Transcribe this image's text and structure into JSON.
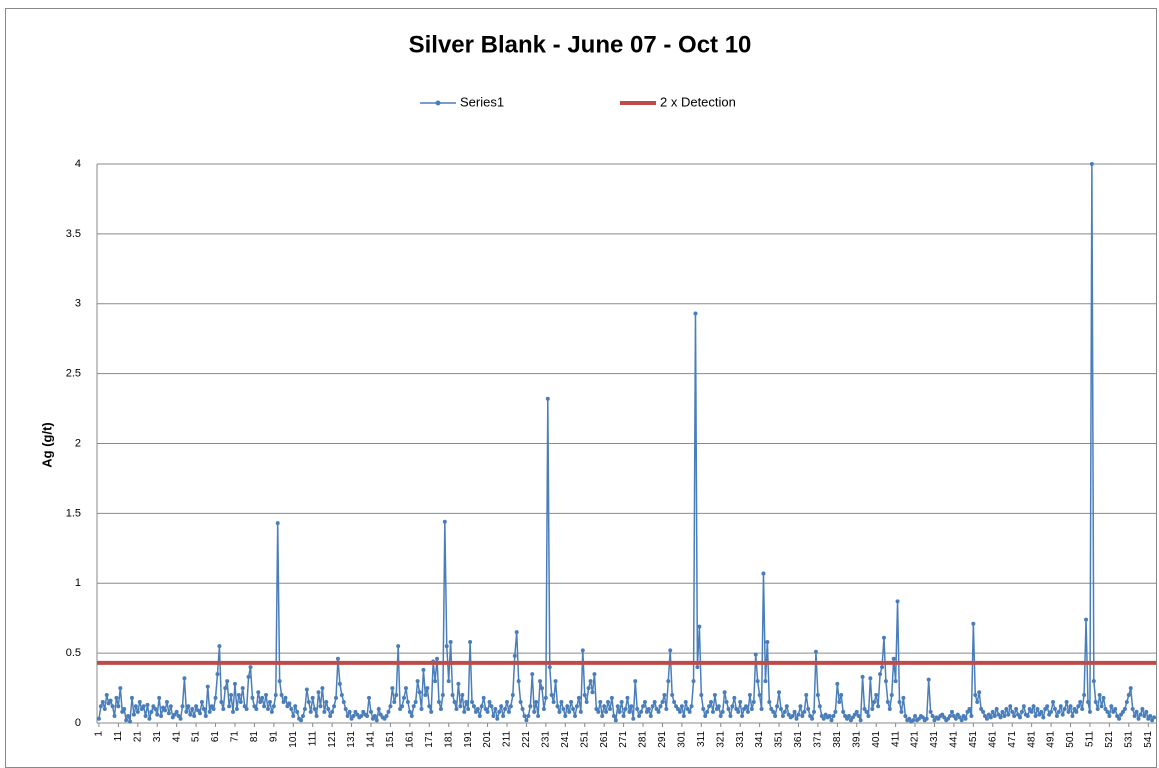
{
  "chart_data": {
    "type": "line",
    "title": "Silver Blank - June 07 - Oct 10",
    "ylabel": "Ag (g/t)",
    "x": [
      1,
      2,
      3,
      4,
      5,
      6,
      7,
      8,
      9,
      10,
      11,
      12,
      13,
      14,
      15,
      16,
      17,
      18,
      19,
      20,
      21,
      22,
      23,
      24,
      25,
      26,
      27,
      28,
      29,
      30,
      31,
      32,
      33,
      34,
      35,
      36,
      37,
      38,
      39,
      40,
      41,
      42,
      43,
      44,
      45,
      46,
      47,
      48,
      49,
      50,
      51,
      52,
      53,
      54,
      55,
      56,
      57,
      58,
      59,
      60,
      61,
      62,
      63,
      64,
      65,
      66,
      67,
      68,
      69,
      70,
      71,
      72,
      73,
      74,
      75,
      76,
      77,
      78,
      79,
      80,
      81,
      82,
      83,
      84,
      85,
      86,
      87,
      88,
      89,
      90,
      91,
      92,
      93,
      94,
      95,
      96,
      97,
      98,
      99,
      100,
      101,
      102,
      103,
      104,
      105,
      106,
      107,
      108,
      109,
      110,
      111,
      112,
      113,
      114,
      115,
      116,
      117,
      118,
      119,
      120,
      121,
      122,
      123,
      124,
      125,
      126,
      127,
      128,
      129,
      130,
      131,
      132,
      133,
      134,
      135,
      136,
      137,
      138,
      139,
      140,
      141,
      142,
      143,
      144,
      145,
      146,
      147,
      148,
      149,
      150,
      151,
      152,
      153,
      154,
      155,
      156,
      157,
      158,
      159,
      160,
      161,
      162,
      163,
      164,
      165,
      166,
      167,
      168,
      169,
      170,
      171,
      172,
      173,
      174,
      175,
      176,
      177,
      178,
      179,
      180,
      181,
      182,
      183,
      184,
      185,
      186,
      187,
      188,
      189,
      190,
      191,
      192,
      193,
      194,
      195,
      196,
      197,
      198,
      199,
      200,
      201,
      202,
      203,
      204,
      205,
      206,
      207,
      208,
      209,
      210,
      211,
      212,
      213,
      214,
      215,
      216,
      217,
      218,
      219,
      220,
      221,
      222,
      223,
      224,
      225,
      226,
      227,
      228,
      229,
      230,
      231,
      232,
      233,
      234,
      235,
      236,
      237,
      238,
      239,
      240,
      241,
      242,
      243,
      244,
      245,
      246,
      247,
      248,
      249,
      250,
      251,
      252,
      253,
      254,
      255,
      256,
      257,
      258,
      259,
      260,
      261,
      262,
      263,
      264,
      265,
      266,
      267,
      268,
      269,
      270,
      271,
      272,
      273,
      274,
      275,
      276,
      277,
      278,
      279,
      280,
      281,
      282,
      283,
      284,
      285,
      286,
      287,
      288,
      289,
      290,
      291,
      292,
      293,
      294,
      295,
      296,
      297,
      298,
      299,
      300,
      301,
      302,
      303,
      304,
      305,
      306,
      307,
      308,
      309,
      310,
      311,
      312,
      313,
      314,
      315,
      316,
      317,
      318,
      319,
      320,
      321,
      322,
      323,
      324,
      325,
      326,
      327,
      328,
      329,
      330,
      331,
      332,
      333,
      334,
      335,
      336,
      337,
      338,
      339,
      340,
      341,
      342,
      343,
      344,
      345,
      346,
      347,
      348,
      349,
      350,
      351,
      352,
      353,
      354,
      355,
      356,
      357,
      358,
      359,
      360,
      361,
      362,
      363,
      364,
      365,
      366,
      367,
      368,
      369,
      370,
      371,
      372,
      373,
      374,
      375,
      376,
      377,
      378,
      379,
      380,
      381,
      382,
      383,
      384,
      385,
      386,
      387,
      388,
      389,
      390,
      391,
      392,
      393,
      394,
      395,
      396,
      397,
      398,
      399,
      400,
      401,
      402,
      403,
      404,
      405,
      406,
      407,
      408,
      409,
      410,
      411,
      412,
      413,
      414,
      415,
      416,
      417,
      418,
      419,
      420,
      421,
      422,
      423,
      424,
      425,
      426,
      427,
      428,
      429,
      430,
      431,
      432,
      433,
      434,
      435,
      436,
      437,
      438,
      439,
      440,
      441,
      442,
      443,
      444,
      445,
      446,
      447,
      448,
      449,
      450,
      451,
      452,
      453,
      454,
      455,
      456,
      457,
      458,
      459,
      460,
      461,
      462,
      463,
      464,
      465,
      466,
      467,
      468,
      469,
      470,
      471,
      472,
      473,
      474,
      475,
      476,
      477,
      478,
      479,
      480,
      481,
      482,
      483,
      484,
      485,
      486,
      487,
      488,
      489,
      490,
      491,
      492,
      493,
      494,
      495,
      496,
      497,
      498,
      499,
      500,
      501,
      502,
      503,
      504,
      505,
      506,
      507,
      508,
      509,
      510,
      511,
      512,
      513,
      514,
      515,
      516,
      517,
      518,
      519,
      520,
      521,
      522,
      523,
      524,
      525,
      526,
      527,
      528,
      529,
      530,
      531,
      532,
      533,
      534,
      535,
      536,
      537,
      538,
      539,
      540,
      541,
      542,
      543,
      544
    ],
    "series": [
      {
        "name": "Series1",
        "color": "#4a7ebb",
        "values": [
          0.03,
          0.12,
          0.15,
          0.1,
          0.2,
          0.14,
          0.16,
          0.12,
          0.05,
          0.18,
          0.12,
          0.25,
          0.08,
          0.1,
          0.02,
          0.05,
          0.01,
          0.18,
          0.06,
          0.12,
          0.08,
          0.15,
          0.1,
          0.12,
          0.05,
          0.13,
          0.03,
          0.08,
          0.12,
          0.1,
          0.06,
          0.18,
          0.05,
          0.11,
          0.09,
          0.15,
          0.07,
          0.12,
          0.04,
          0.06,
          0.08,
          0.05,
          0.03,
          0.12,
          0.32,
          0.08,
          0.12,
          0.06,
          0.1,
          0.05,
          0.12,
          0.09,
          0.07,
          0.15,
          0.1,
          0.05,
          0.26,
          0.08,
          0.12,
          0.1,
          0.18,
          0.35,
          0.55,
          0.15,
          0.1,
          0.25,
          0.3,
          0.12,
          0.2,
          0.08,
          0.28,
          0.1,
          0.2,
          0.15,
          0.25,
          0.12,
          0.1,
          0.33,
          0.4,
          0.18,
          0.12,
          0.1,
          0.22,
          0.15,
          0.18,
          0.12,
          0.2,
          0.1,
          0.15,
          0.08,
          0.12,
          0.2,
          1.43,
          0.3,
          0.2,
          0.15,
          0.18,
          0.12,
          0.14,
          0.1,
          0.05,
          0.12,
          0.08,
          0.03,
          0.02,
          0.05,
          0.1,
          0.24,
          0.15,
          0.08,
          0.18,
          0.1,
          0.05,
          0.22,
          0.12,
          0.25,
          0.08,
          0.15,
          0.1,
          0.05,
          0.08,
          0.12,
          0.18,
          0.46,
          0.28,
          0.2,
          0.15,
          0.1,
          0.05,
          0.08,
          0.03,
          0.05,
          0.08,
          0.06,
          0.04,
          0.05,
          0.08,
          0.06,
          0.05,
          0.18,
          0.08,
          0.03,
          0.05,
          0.02,
          0.1,
          0.06,
          0.04,
          0.03,
          0.05,
          0.08,
          0.12,
          0.25,
          0.15,
          0.2,
          0.55,
          0.1,
          0.12,
          0.18,
          0.25,
          0.15,
          0.08,
          0.05,
          0.12,
          0.15,
          0.3,
          0.22,
          0.1,
          0.38,
          0.2,
          0.25,
          0.12,
          0.08,
          0.44,
          0.3,
          0.46,
          0.15,
          0.1,
          0.2,
          1.44,
          0.55,
          0.3,
          0.58,
          0.2,
          0.15,
          0.1,
          0.28,
          0.12,
          0.2,
          0.08,
          0.15,
          0.1,
          0.58,
          0.15,
          0.12,
          0.08,
          0.1,
          0.05,
          0.12,
          0.18,
          0.1,
          0.08,
          0.15,
          0.12,
          0.05,
          0.1,
          0.03,
          0.08,
          0.12,
          0.05,
          0.1,
          0.15,
          0.08,
          0.12,
          0.2,
          0.48,
          0.65,
          0.3,
          0.15,
          0.1,
          0.05,
          0.02,
          0.05,
          0.12,
          0.35,
          0.08,
          0.15,
          0.05,
          0.3,
          0.25,
          0.1,
          0.18,
          2.32,
          0.4,
          0.2,
          0.15,
          0.3,
          0.12,
          0.08,
          0.15,
          0.1,
          0.05,
          0.12,
          0.08,
          0.15,
          0.1,
          0.05,
          0.12,
          0.18,
          0.08,
          0.52,
          0.2,
          0.15,
          0.25,
          0.3,
          0.22,
          0.35,
          0.1,
          0.08,
          0.15,
          0.05,
          0.12,
          0.08,
          0.15,
          0.1,
          0.18,
          0.05,
          0.02,
          0.12,
          0.08,
          0.15,
          0.05,
          0.1,
          0.18,
          0.08,
          0.12,
          0.03,
          0.3,
          0.1,
          0.05,
          0.08,
          0.12,
          0.15,
          0.08,
          0.1,
          0.05,
          0.12,
          0.15,
          0.1,
          0.08,
          0.12,
          0.15,
          0.2,
          0.1,
          0.3,
          0.52,
          0.2,
          0.15,
          0.12,
          0.1,
          0.08,
          0.12,
          0.05,
          0.15,
          0.1,
          0.08,
          0.12,
          0.3,
          2.93,
          0.4,
          0.69,
          0.2,
          0.1,
          0.05,
          0.08,
          0.12,
          0.15,
          0.08,
          0.2,
          0.1,
          0.12,
          0.05,
          0.08,
          0.22,
          0.15,
          0.1,
          0.05,
          0.12,
          0.18,
          0.1,
          0.08,
          0.15,
          0.05,
          0.1,
          0.12,
          0.08,
          0.2,
          0.1,
          0.15,
          0.49,
          0.3,
          0.2,
          0.1,
          1.07,
          0.3,
          0.58,
          0.15,
          0.1,
          0.08,
          0.05,
          0.12,
          0.22,
          0.1,
          0.05,
          0.08,
          0.12,
          0.06,
          0.04,
          0.05,
          0.08,
          0.03,
          0.06,
          0.12,
          0.05,
          0.08,
          0.2,
          0.1,
          0.05,
          0.03,
          0.08,
          0.51,
          0.2,
          0.12,
          0.05,
          0.03,
          0.06,
          0.04,
          0.05,
          0.02,
          0.05,
          0.08,
          0.28,
          0.15,
          0.2,
          0.08,
          0.05,
          0.03,
          0.05,
          0.02,
          0.04,
          0.06,
          0.08,
          0.05,
          0.02,
          0.33,
          0.1,
          0.08,
          0.05,
          0.32,
          0.1,
          0.15,
          0.2,
          0.12,
          0.35,
          0.4,
          0.61,
          0.3,
          0.15,
          0.1,
          0.2,
          0.46,
          0.3,
          0.87,
          0.15,
          0.08,
          0.18,
          0.05,
          0.02,
          0.03,
          0.01,
          0.02,
          0.05,
          0.02,
          0.03,
          0.05,
          0.04,
          0.02,
          0.03,
          0.31,
          0.08,
          0.05,
          0.02,
          0.04,
          0.03,
          0.05,
          0.06,
          0.04,
          0.02,
          0.03,
          0.05,
          0.08,
          0.05,
          0.03,
          0.06,
          0.04,
          0.02,
          0.05,
          0.03,
          0.08,
          0.1,
          0.05,
          0.71,
          0.2,
          0.15,
          0.22,
          0.1,
          0.08,
          0.05,
          0.03,
          0.06,
          0.04,
          0.08,
          0.05,
          0.1,
          0.06,
          0.04,
          0.08,
          0.05,
          0.1,
          0.06,
          0.12,
          0.08,
          0.05,
          0.1,
          0.06,
          0.04,
          0.08,
          0.12,
          0.06,
          0.05,
          0.1,
          0.08,
          0.12,
          0.05,
          0.1,
          0.06,
          0.08,
          0.04,
          0.1,
          0.12,
          0.06,
          0.08,
          0.15,
          0.1,
          0.05,
          0.08,
          0.12,
          0.06,
          0.1,
          0.15,
          0.08,
          0.12,
          0.05,
          0.1,
          0.08,
          0.12,
          0.15,
          0.1,
          0.2,
          0.74,
          0.15,
          0.08,
          4.0,
          0.3,
          0.15,
          0.1,
          0.2,
          0.12,
          0.18,
          0.1,
          0.08,
          0.05,
          0.12,
          0.08,
          0.1,
          0.05,
          0.03,
          0.06,
          0.08,
          0.1,
          0.15,
          0.2,
          0.25,
          0.1,
          0.05,
          0.08,
          0.03,
          0.06,
          0.1,
          0.05,
          0.08,
          0.03,
          0.05,
          0.02,
          0.04
        ]
      }
    ],
    "reference_lines": [
      {
        "name": "2 x Detection",
        "color": "#be4b48",
        "value": 0.43
      }
    ],
    "xlim": [
      0,
      545
    ],
    "xticks": [
      1,
      11,
      21,
      31,
      41,
      51,
      61,
      71,
      81,
      91,
      101,
      111,
      121,
      131,
      141,
      151,
      161,
      171,
      181,
      191,
      201,
      211,
      221,
      231,
      241,
      251,
      261,
      271,
      281,
      291,
      301,
      311,
      321,
      331,
      341,
      351,
      361,
      371,
      381,
      391,
      401,
      411,
      421,
      431,
      441,
      451,
      461,
      471,
      481,
      491,
      501,
      511,
      521,
      531,
      541
    ],
    "ylim": [
      0,
      4
    ],
    "yticks": [
      0,
      0.5,
      1,
      1.5,
      2,
      2.5,
      3,
      3.5,
      4
    ],
    "grid": true
  }
}
